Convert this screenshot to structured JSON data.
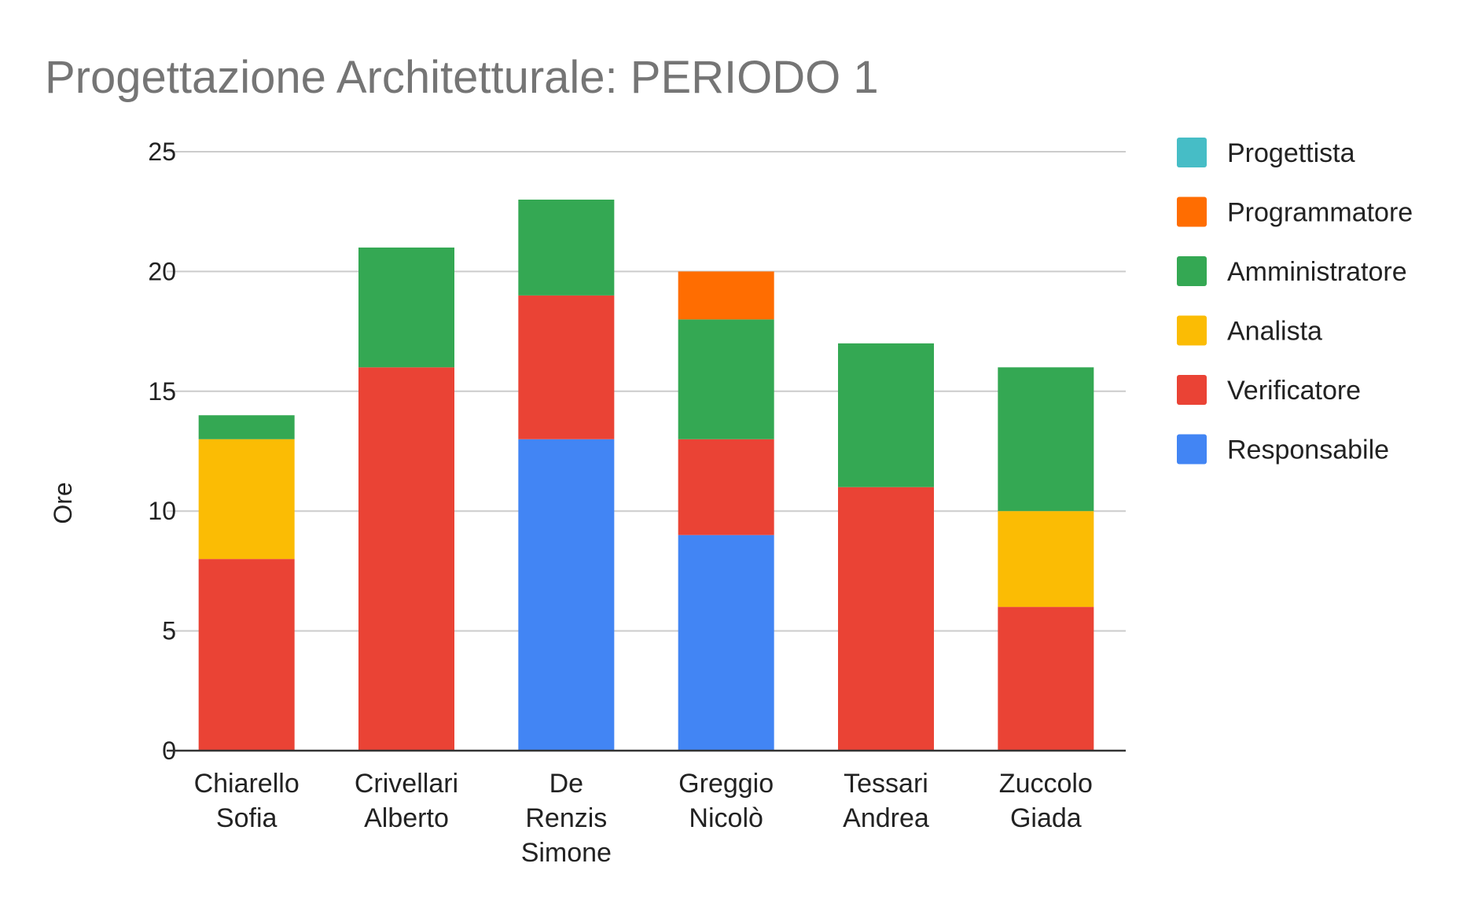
{
  "chart_data": {
    "type": "bar",
    "stacked": true,
    "title": "Progettazione  Architetturale: PERIODO 1",
    "ylabel": "Ore",
    "xlabel": "",
    "ylim": [
      0,
      25
    ],
    "yticks": [
      0,
      5,
      10,
      15,
      20,
      25
    ],
    "grid": true,
    "legend_position": "right",
    "categories": [
      [
        "Chiarello",
        "Sofia"
      ],
      [
        "Crivellari",
        "Alberto"
      ],
      [
        "De",
        "Renzis",
        "Simone"
      ],
      [
        "Greggio",
        "Nicolò"
      ],
      [
        "Tessari",
        "Andrea"
      ],
      [
        "Zuccolo",
        "Giada"
      ]
    ],
    "series": [
      {
        "name": "Responsabile",
        "color": "#4285F4",
        "values": [
          0,
          0,
          13,
          9,
          0,
          0
        ]
      },
      {
        "name": "Verificatore",
        "color": "#EA4335",
        "values": [
          8,
          16,
          6,
          4,
          11,
          6
        ]
      },
      {
        "name": "Analista",
        "color": "#FBBC04",
        "values": [
          5,
          0,
          0,
          0,
          0,
          4
        ]
      },
      {
        "name": "Amministratore",
        "color": "#34A853",
        "values": [
          1,
          5,
          4,
          5,
          6,
          6
        ]
      },
      {
        "name": "Programmatore",
        "color": "#FF6D01",
        "values": [
          0,
          0,
          0,
          2,
          0,
          0
        ]
      },
      {
        "name": "Progettista",
        "color": "#46BDC6",
        "values": [
          0,
          0,
          0,
          0,
          0,
          0
        ]
      }
    ],
    "legend_order": [
      "Progettista",
      "Programmatore",
      "Amministratore",
      "Analista",
      "Verificatore",
      "Responsabile"
    ]
  }
}
